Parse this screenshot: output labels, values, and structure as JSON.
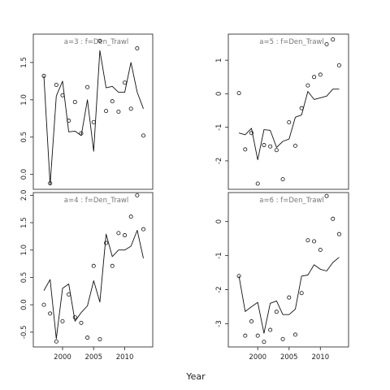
{
  "figure": {
    "xlabel": "Year"
  },
  "chart_data": [
    {
      "type": "line",
      "title": "a=3  :  f=Den_Trawl",
      "x": [
        1997,
        1998,
        1999,
        2000,
        2001,
        2002,
        2003,
        2004,
        2005,
        2006,
        2007,
        2008,
        2009,
        2010,
        2011,
        2012,
        2013
      ],
      "series": [
        {
          "style": "line",
          "values": [
            1.32,
            -0.14,
            1.05,
            1.25,
            0.57,
            0.58,
            0.52,
            1.0,
            0.31,
            1.66,
            1.16,
            1.18,
            1.1,
            1.1,
            1.5,
            1.1,
            0.88
          ]
        },
        {
          "style": "points",
          "values": [
            1.32,
            -0.12,
            1.2,
            1.06,
            0.72,
            0.97,
            0.55,
            1.17,
            0.7,
            1.79,
            0.85,
            0.98,
            0.84,
            1.23,
            0.88,
            1.69,
            0.52
          ]
        }
      ],
      "xlim": [
        1995.3,
        2014.5
      ],
      "ylim": [
        -0.2,
        1.88
      ],
      "yticks": [
        0.0,
        0.5,
        1.0,
        1.5
      ],
      "yticklabels": [
        "0.0",
        "0.5",
        "1.0",
        "1.5"
      ],
      "xticks": [],
      "xticklabels": []
    },
    {
      "type": "line",
      "title": "a=5  :  f=Den_Trawl",
      "x": [
        1997,
        1998,
        1999,
        2000,
        2001,
        2002,
        2003,
        2004,
        2005,
        2006,
        2007,
        2008,
        2009,
        2010,
        2011,
        2012,
        2013
      ],
      "series": [
        {
          "style": "line",
          "values": [
            -1.17,
            -1.22,
            -1.03,
            -1.97,
            -1.07,
            -1.09,
            -1.6,
            -1.42,
            -1.35,
            -0.7,
            -0.63,
            0.07,
            -0.17,
            -0.12,
            -0.07,
            0.14,
            0.14
          ]
        },
        {
          "style": "points",
          "values": [
            0.02,
            -1.66,
            -1.17,
            -2.68,
            -1.53,
            -1.57,
            -1.68,
            -2.55,
            -0.85,
            -1.55,
            -0.43,
            0.25,
            0.5,
            0.57,
            1.48,
            1.62,
            0.85
          ]
        }
      ],
      "xlim": [
        1995.3,
        2014.5
      ],
      "ylim": [
        -2.85,
        1.78
      ],
      "yticks": [
        -2,
        -1,
        0,
        1
      ],
      "yticklabels": [
        "-2",
        "-1",
        "0",
        "1"
      ],
      "xticks": [],
      "xticklabels": []
    },
    {
      "type": "line",
      "title": "a=4  :  f=Den_Trawl",
      "x": [
        1997,
        1998,
        1999,
        2000,
        2001,
        2002,
        2003,
        2004,
        2005,
        2006,
        2007,
        2008,
        2009,
        2010,
        2011,
        2012,
        2013
      ],
      "series": [
        {
          "style": "line",
          "values": [
            0.26,
            0.46,
            -0.62,
            0.3,
            0.38,
            -0.3,
            -0.14,
            -0.02,
            0.44,
            0.05,
            1.29,
            0.88,
            1.0,
            1.0,
            1.07,
            1.36,
            0.85
          ]
        },
        {
          "style": "points",
          "values": [
            0.0,
            -0.16,
            -0.67,
            -0.3,
            0.19,
            -0.23,
            -0.33,
            -0.6,
            0.71,
            -0.63,
            1.13,
            0.71,
            1.31,
            1.27,
            1.61,
            2.0,
            1.38
          ]
        }
      ],
      "xlim": [
        1995.3,
        2014.5
      ],
      "ylim": [
        -0.77,
        2.05
      ],
      "yticks": [
        -0.5,
        0.0,
        0.5,
        1.0,
        1.5,
        2.0
      ],
      "yticklabels": [
        "-0.5",
        "0.0",
        "0.5",
        "1.0",
        "1.5",
        "2.0"
      ],
      "xticks": [
        2000,
        2005,
        2010
      ],
      "xticklabels": [
        "2000",
        "2005",
        "2010"
      ]
    },
    {
      "type": "line",
      "title": "a=6  :  f=Den_Trawl",
      "x": [
        1997,
        1998,
        1999,
        2000,
        2001,
        2002,
        2003,
        2004,
        2005,
        2006,
        2007,
        2008,
        2009,
        2010,
        2011,
        2012,
        2013
      ],
      "series": [
        {
          "style": "line",
          "values": [
            -1.6,
            -2.64,
            -2.5,
            -2.37,
            -3.28,
            -2.4,
            -2.33,
            -2.73,
            -2.73,
            -2.57,
            -1.6,
            -1.57,
            -1.27,
            -1.4,
            -1.45,
            -1.2,
            -1.05
          ]
        },
        {
          "style": "points",
          "values": [
            -1.6,
            -3.35,
            -2.93,
            -3.35,
            -3.53,
            -3.18,
            -2.65,
            -3.45,
            -2.23,
            -3.32,
            -2.1,
            -0.55,
            -0.58,
            -0.83,
            0.75,
            0.08,
            -0.37
          ]
        }
      ],
      "xlim": [
        1995.3,
        2014.5
      ],
      "ylim": [
        -3.68,
        0.85
      ],
      "yticks": [
        -3,
        -2,
        -1,
        0
      ],
      "yticklabels": [
        "-3",
        "-2",
        "-1",
        "0"
      ],
      "xticks": [
        2000,
        2005,
        2010
      ],
      "xticklabels": [
        "2000",
        "2005",
        "2010"
      ]
    }
  ]
}
